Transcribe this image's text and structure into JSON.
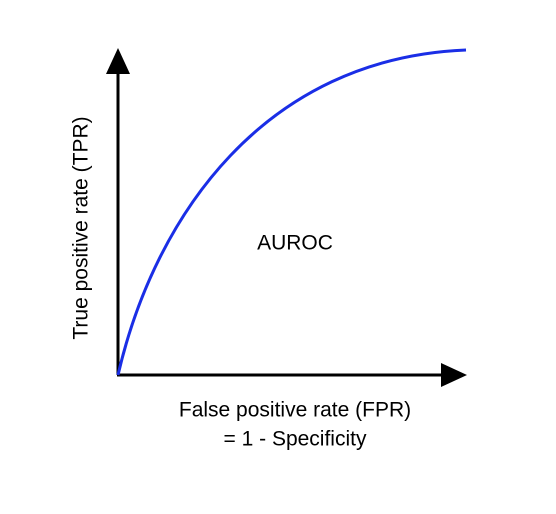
{
  "y_axis_label": "True positive rate (TPR)",
  "x_axis_label": [
    "False positive rate (FPR)",
    "= 1 - Specificity"
  ],
  "area_label": "AUROC"
}
